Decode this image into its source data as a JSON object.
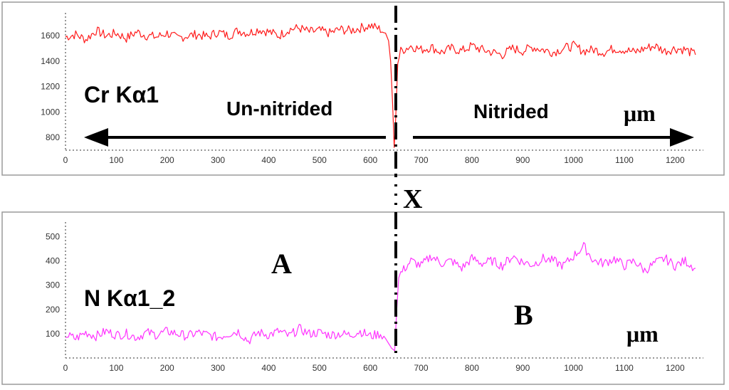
{
  "chart_data": [
    {
      "type": "line",
      "element_label": "Cr Kα1",
      "xlim": [
        0,
        1250
      ],
      "ylim": [
        700,
        1780
      ],
      "x_ticks": [
        0,
        100,
        200,
        300,
        400,
        500,
        600,
        700,
        800,
        900,
        1000,
        1100,
        1200
      ],
      "y_ticks": [
        800,
        1000,
        1200,
        1400,
        1600
      ],
      "color": "#ff1a1a",
      "series": [
        {
          "points": [
            [
              0,
              1590
            ],
            [
              20,
              1610
            ],
            [
              40,
              1570
            ],
            [
              60,
              1640
            ],
            [
              80,
              1600
            ],
            [
              100,
              1620
            ],
            [
              120,
              1580
            ],
            [
              140,
              1630
            ],
            [
              160,
              1600
            ],
            [
              180,
              1590
            ],
            [
              200,
              1620
            ],
            [
              220,
              1580
            ],
            [
              240,
              1600
            ],
            [
              260,
              1610
            ],
            [
              280,
              1590
            ],
            [
              300,
              1630
            ],
            [
              320,
              1600
            ],
            [
              340,
              1640
            ],
            [
              360,
              1620
            ],
            [
              380,
              1650
            ],
            [
              400,
              1630
            ],
            [
              420,
              1600
            ],
            [
              440,
              1650
            ],
            [
              460,
              1660
            ],
            [
              480,
              1630
            ],
            [
              500,
              1640
            ],
            [
              520,
              1620
            ],
            [
              540,
              1650
            ],
            [
              560,
              1640
            ],
            [
              580,
              1660
            ],
            [
              600,
              1680
            ],
            [
              620,
              1650
            ],
            [
              630,
              1620
            ],
            [
              636,
              1560
            ],
            [
              640,
              1400
            ],
            [
              644,
              1050
            ],
            [
              647,
              720
            ],
            [
              650,
              950
            ],
            [
              654,
              1380
            ],
            [
              660,
              1480
            ],
            [
              680,
              1520
            ],
            [
              700,
              1490
            ],
            [
              720,
              1510
            ],
            [
              740,
              1470
            ],
            [
              760,
              1500
            ],
            [
              780,
              1480
            ],
            [
              800,
              1520
            ],
            [
              820,
              1490
            ],
            [
              840,
              1470
            ],
            [
              860,
              1450
            ],
            [
              880,
              1500
            ],
            [
              900,
              1480
            ],
            [
              920,
              1510
            ],
            [
              940,
              1490
            ],
            [
              960,
              1470
            ],
            [
              980,
              1500
            ],
            [
              1000,
              1520
            ],
            [
              1020,
              1480
            ],
            [
              1040,
              1490
            ],
            [
              1060,
              1470
            ],
            [
              1080,
              1500
            ],
            [
              1100,
              1490
            ],
            [
              1120,
              1470
            ],
            [
              1140,
              1500
            ],
            [
              1160,
              1520
            ],
            [
              1180,
              1480
            ],
            [
              1200,
              1500
            ],
            [
              1220,
              1490
            ],
            [
              1240,
              1450
            ]
          ]
        }
      ]
    },
    {
      "type": "line",
      "element_label": "N Kα1_2",
      "xlim": [
        0,
        1250
      ],
      "ylim": [
        0,
        560
      ],
      "x_ticks": [
        0,
        100,
        200,
        300,
        400,
        500,
        600,
        700,
        800,
        900,
        1000,
        1100,
        1200
      ],
      "y_ticks": [
        100,
        200,
        300,
        400,
        500
      ],
      "color": "#ff33ff",
      "series": [
        {
          "points": [
            [
              0,
              95
            ],
            [
              20,
              80
            ],
            [
              40,
              105
            ],
            [
              60,
              90
            ],
            [
              80,
              110
            ],
            [
              100,
              95
            ],
            [
              120,
              100
            ],
            [
              140,
              85
            ],
            [
              160,
              105
            ],
            [
              180,
              95
            ],
            [
              200,
              110
            ],
            [
              220,
              100
            ],
            [
              240,
              90
            ],
            [
              260,
              105
            ],
            [
              280,
              95
            ],
            [
              300,
              85
            ],
            [
              320,
              100
            ],
            [
              340,
              110
            ],
            [
              360,
              70
            ],
            [
              380,
              105
            ],
            [
              400,
              95
            ],
            [
              420,
              110
            ],
            [
              440,
              90
            ],
            [
              460,
              120
            ],
            [
              480,
              100
            ],
            [
              500,
              105
            ],
            [
              520,
              95
            ],
            [
              540,
              100
            ],
            [
              560,
              95
            ],
            [
              580,
              110
            ],
            [
              600,
              90
            ],
            [
              620,
              100
            ],
            [
              630,
              80
            ],
            [
              636,
              60
            ],
            [
              642,
              40
            ],
            [
              648,
              30
            ],
            [
              652,
              200
            ],
            [
              656,
              330
            ],
            [
              660,
              350
            ],
            [
              680,
              400
            ],
            [
              700,
              380
            ],
            [
              720,
              420
            ],
            [
              740,
              390
            ],
            [
              760,
              400
            ],
            [
              780,
              370
            ],
            [
              800,
              410
            ],
            [
              820,
              390
            ],
            [
              840,
              400
            ],
            [
              860,
              380
            ],
            [
              880,
              420
            ],
            [
              900,
              395
            ],
            [
              920,
              385
            ],
            [
              940,
              410
            ],
            [
              960,
              400
            ],
            [
              980,
              380
            ],
            [
              1000,
              420
            ],
            [
              1020,
              460
            ],
            [
              1040,
              400
            ],
            [
              1060,
              390
            ],
            [
              1080,
              410
            ],
            [
              1100,
              380
            ],
            [
              1120,
              400
            ],
            [
              1140,
              360
            ],
            [
              1160,
              390
            ],
            [
              1180,
              410
            ],
            [
              1200,
              380
            ],
            [
              1220,
              400
            ],
            [
              1240,
              370
            ]
          ]
        }
      ]
    }
  ],
  "annotations": {
    "unnitrided": "Un-nitrided",
    "nitrided": "Nitrided",
    "um_top": "μm",
    "um_bottom": "μm",
    "x_mark": "X",
    "a_mark": "A",
    "b_mark": "B"
  }
}
